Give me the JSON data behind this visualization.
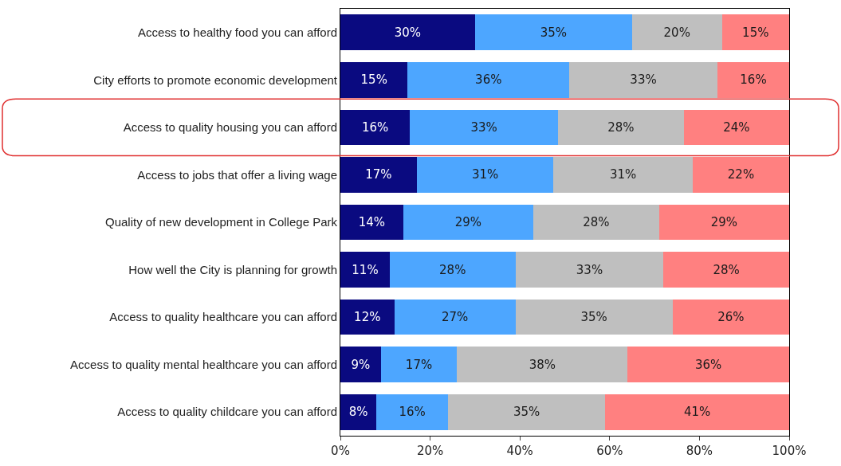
{
  "chart_data": {
    "type": "bar",
    "orientation": "horizontal",
    "stacked": true,
    "categories": [
      "Access to healthy food you can afford",
      "City efforts to promote economic development",
      "Access to quality housing you can afford",
      "Access to jobs that offer a living wage",
      "Quality of new development in College Park",
      "How well the City is planning for growth",
      "Access to quality healthcare you can afford",
      "Access to quality mental healthcare you can afford",
      "Access to quality childcare you can afford"
    ],
    "series": [
      {
        "color": "#0a0a80",
        "values": [
          30,
          15,
          15.5,
          17,
          14,
          11,
          12,
          9,
          8
        ],
        "value_labels": [
          "30%",
          "15%",
          "16%",
          "17%",
          "14%",
          "11%",
          "12%",
          "9%",
          "8%"
        ]
      },
      {
        "color": "#4da6ff",
        "values": [
          35,
          36,
          33,
          30.5,
          29,
          28,
          27,
          17,
          16
        ],
        "value_labels": [
          "35%",
          "36%",
          "33%",
          "31%",
          "29%",
          "28%",
          "27%",
          "17%",
          "16%"
        ]
      },
      {
        "color": "#bfbfbf",
        "values": [
          20,
          33,
          28,
          31,
          28,
          33,
          35,
          38,
          35
        ],
        "value_labels": [
          "20%",
          "33%",
          "28%",
          "31%",
          "28%",
          "33%",
          "35%",
          "38%",
          "35%"
        ]
      },
      {
        "color": "#ff8080",
        "values": [
          15,
          16,
          23.5,
          21.5,
          29,
          28,
          26,
          36,
          41
        ],
        "value_labels": [
          "15%",
          "16%",
          "24%",
          "22%",
          "29%",
          "28%",
          "26%",
          "36%",
          "41%"
        ]
      }
    ],
    "xlim": [
      0,
      100
    ],
    "xticks": [
      {
        "value": 0,
        "label": "0%"
      },
      {
        "value": 20,
        "label": "20%"
      },
      {
        "value": 40,
        "label": "40%"
      },
      {
        "value": 60,
        "label": "60%"
      },
      {
        "value": 80,
        "label": "80%"
      },
      {
        "value": 100,
        "label": "100%"
      }
    ],
    "data_labels": false
  }
}
